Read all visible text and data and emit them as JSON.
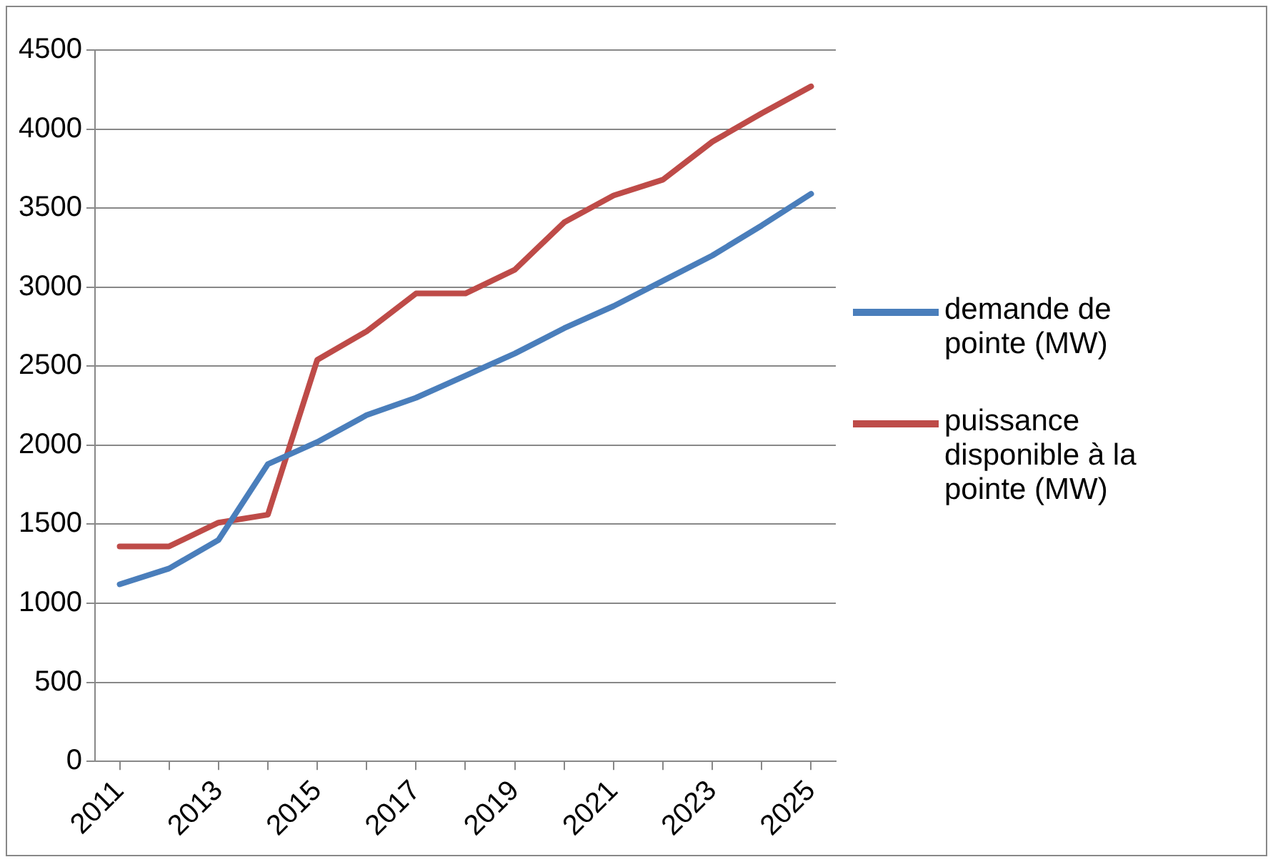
{
  "chart_data": {
    "type": "line",
    "categories": [
      "2011",
      null,
      "2013",
      null,
      "2015",
      null,
      "2017",
      null,
      "2019",
      null,
      "2021",
      null,
      "2023",
      null,
      "2025"
    ],
    "series": [
      {
        "name": "demande de pointe (MW)",
        "color": "#4a7ebb",
        "values": [
          1120,
          1220,
          1400,
          1880,
          2020,
          2190,
          2300,
          2440,
          2580,
          2740,
          2880,
          3040,
          3200,
          3390,
          3590
        ]
      },
      {
        "name": "puissance disponible à la pointe (MW)",
        "color": "#be4b48",
        "values": [
          1360,
          1360,
          1510,
          1560,
          2540,
          2720,
          2960,
          2960,
          3110,
          3410,
          3580,
          3680,
          3920,
          4100,
          4270
        ]
      }
    ],
    "ylim": [
      0,
      4500
    ],
    "yticks": [
      0,
      500,
      1000,
      1500,
      2000,
      2500,
      3000,
      3500,
      4000,
      4500
    ],
    "grid": "y",
    "legend": "right",
    "marker": "none",
    "line_style": "solid"
  }
}
